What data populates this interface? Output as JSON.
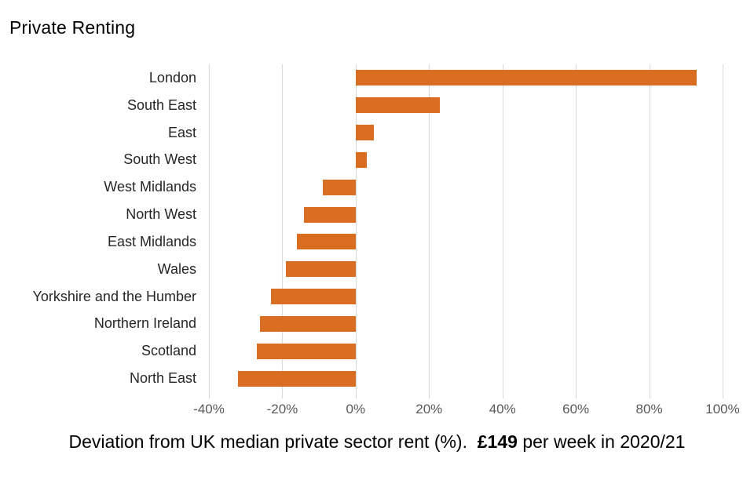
{
  "title": "Private Renting",
  "colors": {
    "bar": "#D96E23",
    "gridline": "#D9D9D9",
    "tick_label": "#595959",
    "category_label": "#262626"
  },
  "chart_data": {
    "type": "bar",
    "orientation": "horizontal",
    "title": "Private Renting",
    "categories": [
      "London",
      "South East",
      "East",
      "South West",
      "West Midlands",
      "North West",
      "East Midlands",
      "Wales",
      "Yorkshire and the Humber",
      "Northern Ireland",
      "Scotland",
      "North East"
    ],
    "values": [
      93,
      23,
      5,
      3,
      -9,
      -14,
      -16,
      -19,
      -23,
      -26,
      -27,
      -32
    ],
    "x_ticks": [
      "-40%",
      "-20%",
      "0%",
      "20%",
      "40%",
      "60%",
      "80%",
      "100%"
    ],
    "x_tick_values": [
      -40,
      -20,
      0,
      20,
      40,
      60,
      80,
      100
    ],
    "xlim": [
      -40,
      100
    ],
    "grid": "vertical",
    "legend": "none",
    "xlabel": "Deviation from UK median private sector rent (%)",
    "ylabel": ""
  },
  "caption": {
    "prefix": "Deviation from UK median private sector rent (%).  ",
    "bold": "£149",
    "suffix": " per week in 2020/21"
  }
}
